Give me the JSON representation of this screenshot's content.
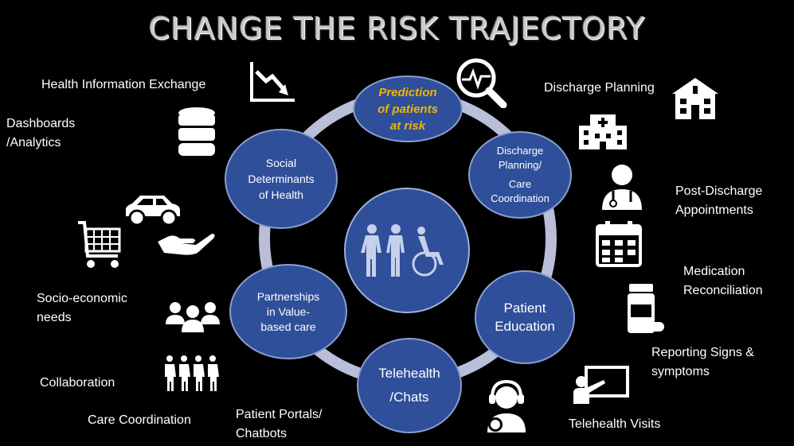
{
  "title": "CHANGE THE RISK TRAJECTORY",
  "center": {
    "icon": "family-wheelchair-icon"
  },
  "nodes": {
    "prediction": {
      "lines": [
        "Prediction",
        "of patients",
        "at risk"
      ],
      "color": "#f0b400"
    },
    "discharge": {
      "lines": [
        "Discharge",
        "Planning/",
        "Care",
        "Coordination"
      ]
    },
    "education": {
      "lines": [
        "Patient",
        "Education"
      ]
    },
    "telehealth": {
      "lines": [
        "Telehealth",
        "/Chats"
      ]
    },
    "partnerships": {
      "lines": [
        "Partnerships",
        "in Value-",
        "based care"
      ]
    },
    "social": {
      "lines": [
        "Social",
        "Determinants",
        "of Health"
      ]
    }
  },
  "labels": {
    "hie": "Health Information Exchange",
    "dashboards": [
      "Dashboards",
      "/Analytics"
    ],
    "discharge_planning": "Discharge Planning",
    "post_discharge": [
      "Post-Discharge",
      "Appointments"
    ],
    "medication": [
      "Medication",
      "Reconciliation"
    ],
    "reporting": [
      "Reporting Signs &",
      "symptoms"
    ],
    "telehealth_visits": "Telehealth Visits",
    "portals": [
      "Patient Portals/",
      "Chatbots"
    ],
    "care_coordination": "Care Coordination",
    "collaboration": "Collaboration",
    "socio": [
      "Socio-economic",
      "needs"
    ]
  },
  "icons": [
    "declining-chart-icon",
    "magnifier-heartbeat-icon",
    "database-icon",
    "hospital-icon",
    "clinic-icon",
    "doctor-icon",
    "calendar-icon",
    "pill-bottle-icon",
    "teacher-board-icon",
    "headset-agent-icon",
    "car-icon",
    "hand-icon",
    "shopping-cart-icon",
    "group-icon",
    "people-row-icon"
  ]
}
